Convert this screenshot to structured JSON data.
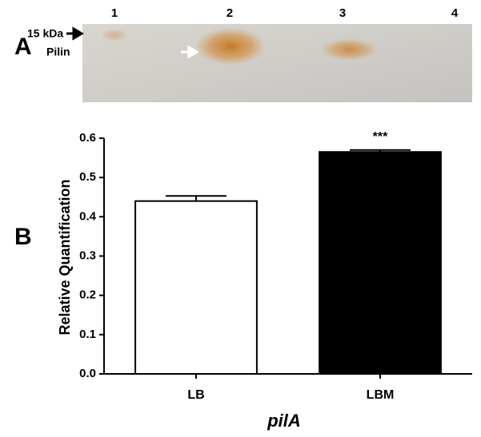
{
  "panel_a": {
    "label": "A",
    "lanes": [
      "1",
      "2",
      "3",
      "4"
    ],
    "marker": "15 kDa",
    "band": "Pilin"
  },
  "chart_data": {
    "type": "bar",
    "panel_label": "B",
    "ylabel": "Relative Quantification",
    "xlabel": "pilA",
    "categories": [
      "LB",
      "LBM"
    ],
    "values": [
      0.44,
      0.565
    ],
    "errors": [
      0.013,
      0.005
    ],
    "colors": [
      "#ffffff",
      "#000000"
    ],
    "ylim": [
      0,
      0.6
    ],
    "yticks": [
      {
        "value": 0,
        "label": "0.0"
      },
      0.1,
      0.2,
      0.3,
      0.4,
      0.5,
      0.6
    ],
    "annotations": [
      {
        "x": "LBM",
        "text": "***"
      }
    ]
  }
}
